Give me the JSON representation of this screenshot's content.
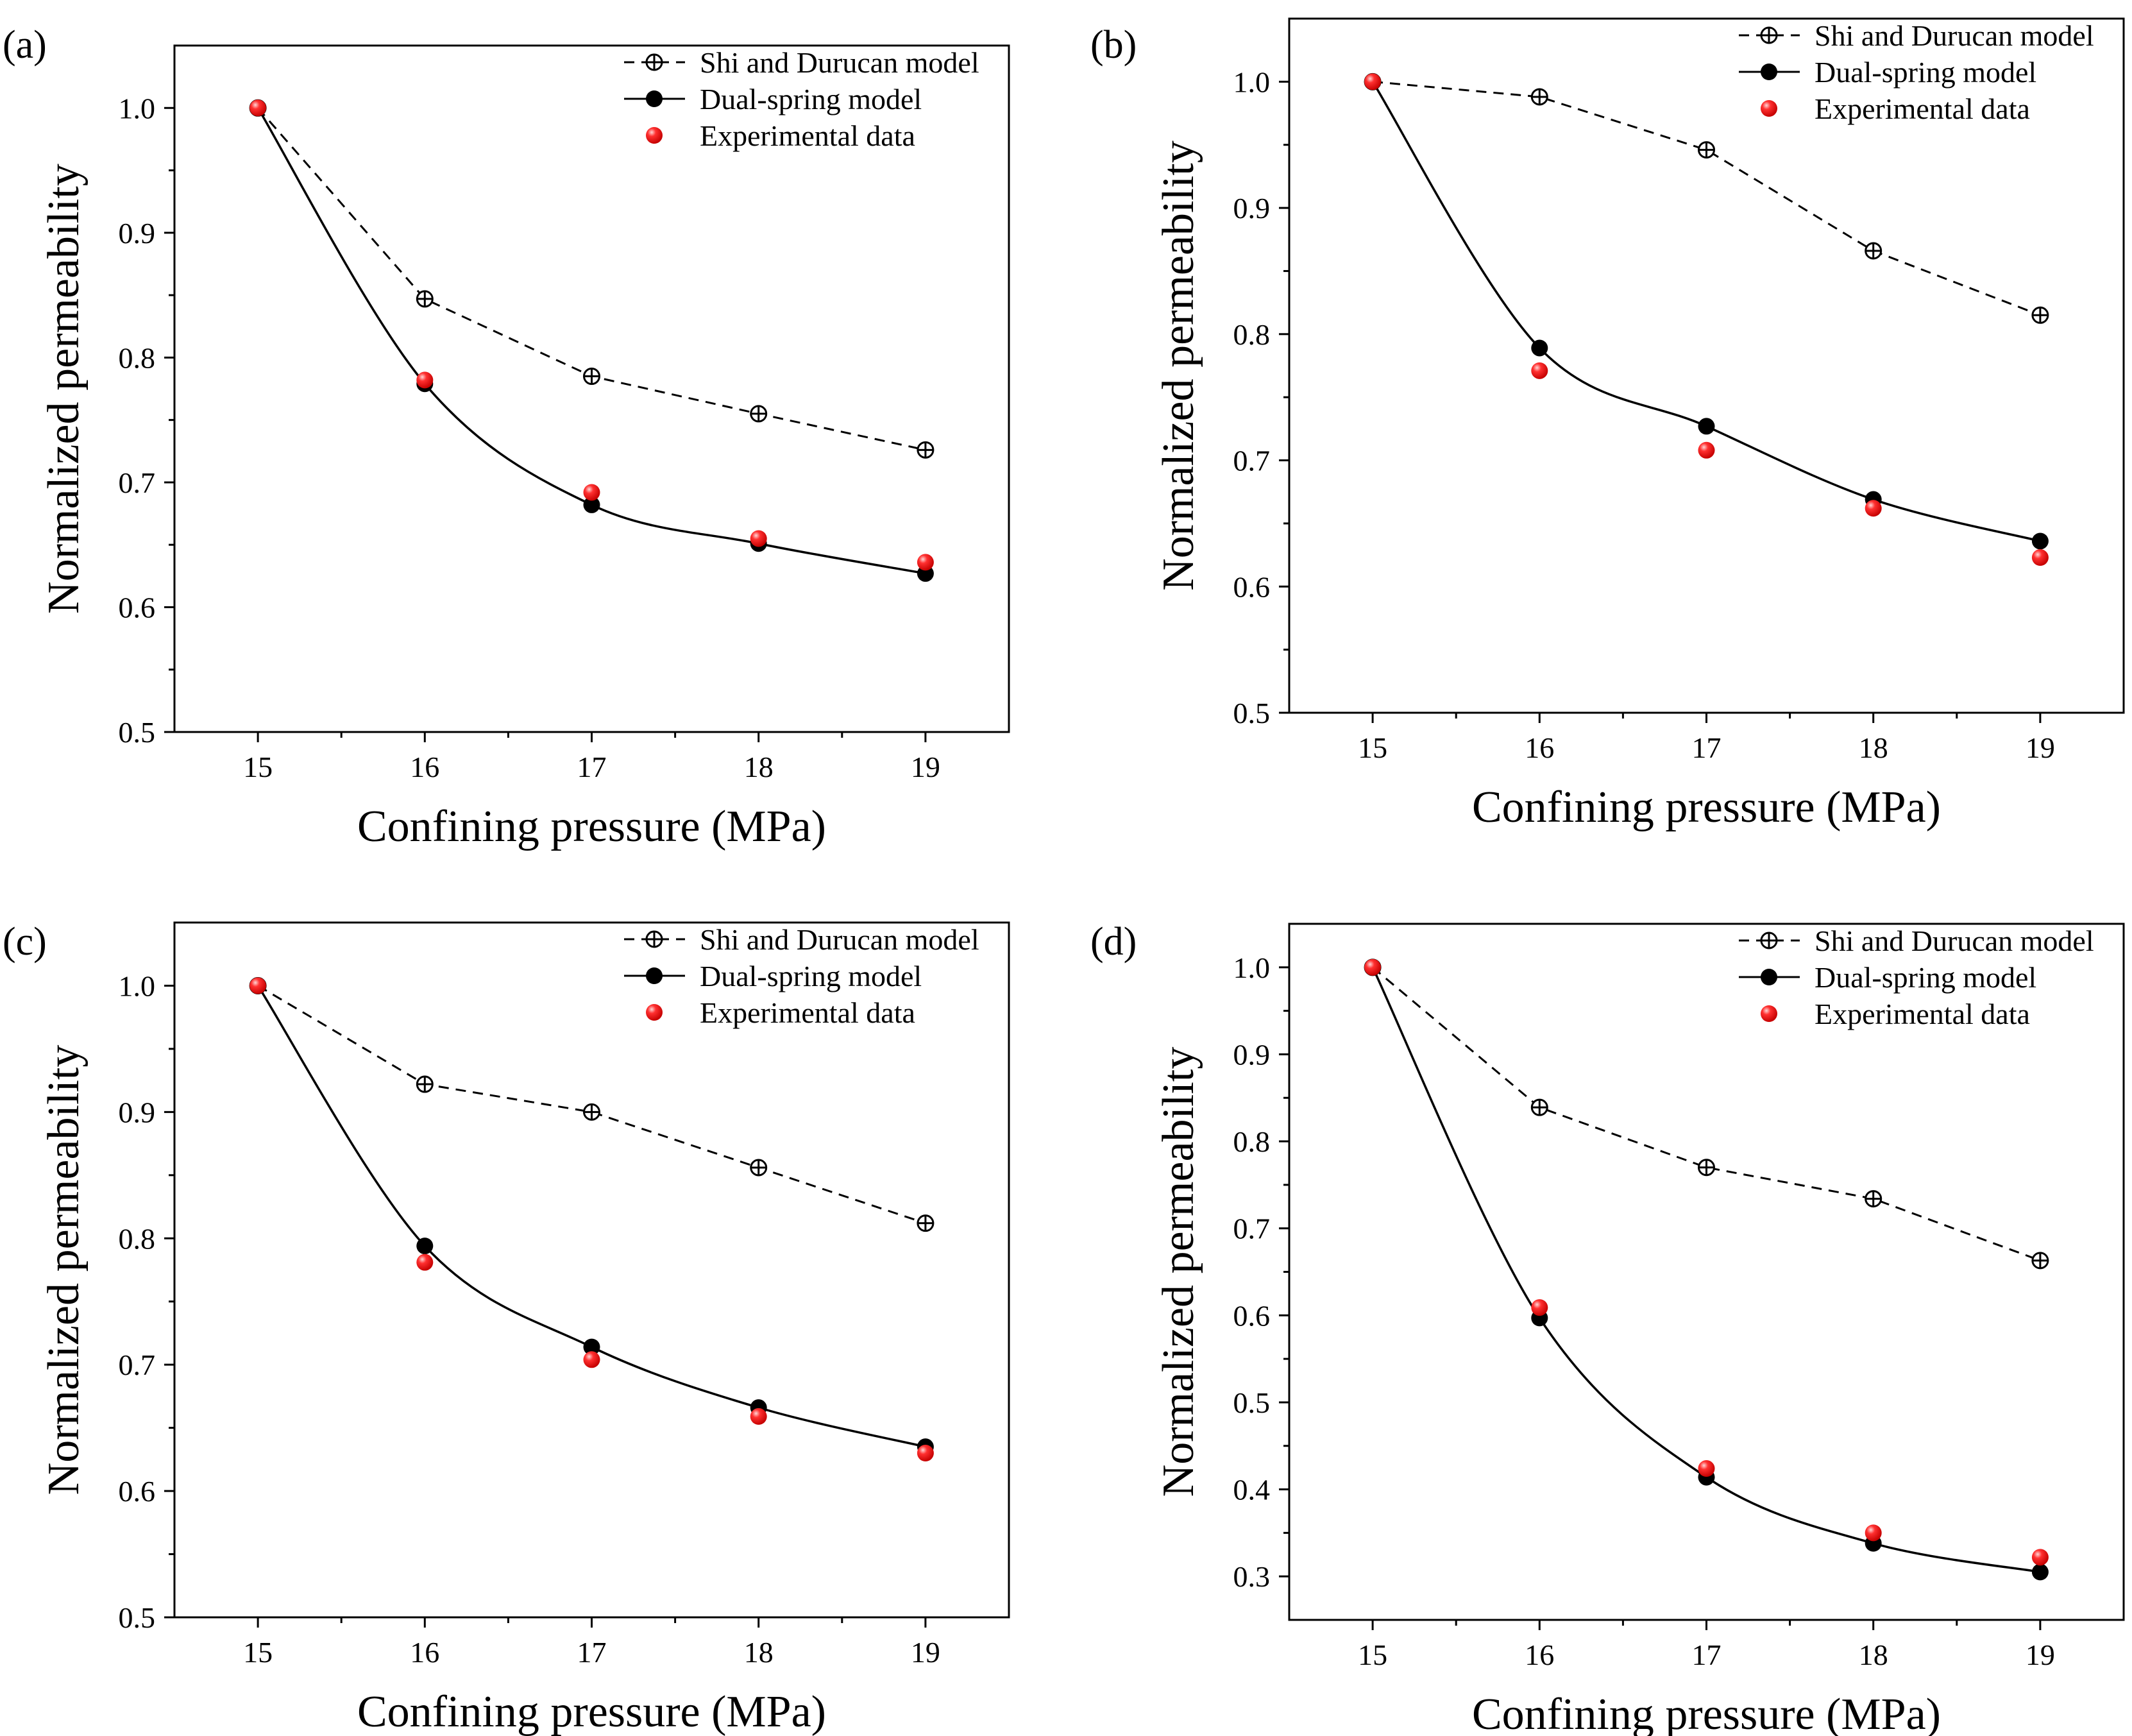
{
  "figure": {
    "legend_labels": [
      "Shi and Durucan model",
      "Dual-spring model",
      "Experimental data"
    ],
    "colors": {
      "axis": "#000000",
      "shi_line": "#000000",
      "dual_marker": "#000000",
      "experimental": "#ff0000"
    }
  },
  "chart_data": [
    {
      "panel": "(a)",
      "type": "line",
      "xlabel": "Confining pressure (MPa)",
      "ylabel": "Normalized permeability",
      "x": [
        15,
        16,
        17,
        18,
        19
      ],
      "xlim": [
        14.5,
        19.5
      ],
      "ylim": [
        0.5,
        1.05
      ],
      "xticks": [
        15,
        16,
        17,
        18,
        19
      ],
      "yticks": [
        0.5,
        0.6,
        0.7,
        0.8,
        0.9,
        1.0
      ],
      "ytick_labels": [
        "0.5",
        "0.6",
        "0.7",
        "0.8",
        "0.9",
        "1.0"
      ],
      "legend_position": "top-right",
      "series": [
        {
          "name": "Shi and Durucan model",
          "style": "dashed-crosshair",
          "values": [
            1.0,
            0.847,
            0.785,
            0.755,
            0.726
          ]
        },
        {
          "name": "Dual-spring model",
          "style": "solid-dot",
          "values": [
            1.0,
            0.779,
            0.682,
            0.651,
            0.627
          ]
        },
        {
          "name": "Experimental data",
          "style": "red-sphere",
          "values": [
            1.0,
            0.782,
            0.692,
            0.655,
            0.636
          ]
        }
      ]
    },
    {
      "panel": "(b)",
      "type": "line",
      "xlabel": "Confining pressure (MPa)",
      "ylabel": "Normalized permeability",
      "x": [
        15,
        16,
        17,
        18,
        19
      ],
      "xlim": [
        14.5,
        19.5
      ],
      "ylim": [
        0.5,
        1.05
      ],
      "xticks": [
        15,
        16,
        17,
        18,
        19
      ],
      "yticks": [
        0.5,
        0.6,
        0.7,
        0.8,
        0.9,
        1.0
      ],
      "ytick_labels": [
        "0.5",
        "0.6",
        "0.7",
        "0.8",
        "0.9",
        "1.0"
      ],
      "legend_position": "top-right",
      "series": [
        {
          "name": "Shi and Durucan model",
          "style": "dashed-crosshair",
          "values": [
            1.0,
            0.988,
            0.946,
            0.866,
            0.815
          ]
        },
        {
          "name": "Dual-spring model",
          "style": "solid-dot",
          "values": [
            1.0,
            0.789,
            0.727,
            0.669,
            0.636
          ]
        },
        {
          "name": "Experimental data",
          "style": "red-sphere",
          "values": [
            1.0,
            0.771,
            0.708,
            0.662,
            0.623
          ]
        }
      ]
    },
    {
      "panel": "(c)",
      "type": "line",
      "xlabel": "Confining pressure (MPa)",
      "ylabel": "Normalized permeability",
      "x": [
        15,
        16,
        17,
        18,
        19
      ],
      "xlim": [
        14.5,
        19.5
      ],
      "ylim": [
        0.5,
        1.05
      ],
      "xticks": [
        15,
        16,
        17,
        18,
        19
      ],
      "yticks": [
        0.5,
        0.6,
        0.7,
        0.8,
        0.9,
        1.0
      ],
      "ytick_labels": [
        "0.5",
        "0.6",
        "0.7",
        "0.8",
        "0.9",
        "1.0"
      ],
      "legend_position": "top-right",
      "series": [
        {
          "name": "Shi and Durucan model",
          "style": "dashed-crosshair",
          "values": [
            1.0,
            0.922,
            0.9,
            0.856,
            0.812
          ]
        },
        {
          "name": "Dual-spring model",
          "style": "solid-dot",
          "values": [
            1.0,
            0.794,
            0.714,
            0.666,
            0.635
          ]
        },
        {
          "name": "Experimental data",
          "style": "red-sphere",
          "values": [
            1.0,
            0.781,
            0.704,
            0.659,
            0.63
          ]
        }
      ]
    },
    {
      "panel": "(d)",
      "type": "line",
      "xlabel": "Confining pressure (MPa)",
      "ylabel": "Normalized permeability",
      "x": [
        15,
        16,
        17,
        18,
        19
      ],
      "xlim": [
        14.5,
        19.5
      ],
      "ylim": [
        0.25,
        1.05
      ],
      "xticks": [
        15,
        16,
        17,
        18,
        19
      ],
      "yticks": [
        0.3,
        0.4,
        0.5,
        0.6,
        0.7,
        0.8,
        0.9,
        1.0
      ],
      "ytick_labels": [
        "0.3",
        "0.4",
        "0.5",
        "0.6",
        "0.7",
        "0.8",
        "0.9",
        "1.0"
      ],
      "legend_position": "top-right",
      "series": [
        {
          "name": "Shi and Durucan model",
          "style": "dashed-crosshair",
          "values": [
            1.0,
            0.839,
            0.77,
            0.734,
            0.663
          ]
        },
        {
          "name": "Dual-spring model",
          "style": "solid-dot",
          "values": [
            1.0,
            0.597,
            0.414,
            0.338,
            0.305
          ]
        },
        {
          "name": "Experimental data",
          "style": "red-sphere",
          "values": [
            1.0,
            0.609,
            0.424,
            0.35,
            0.322
          ]
        }
      ]
    }
  ]
}
